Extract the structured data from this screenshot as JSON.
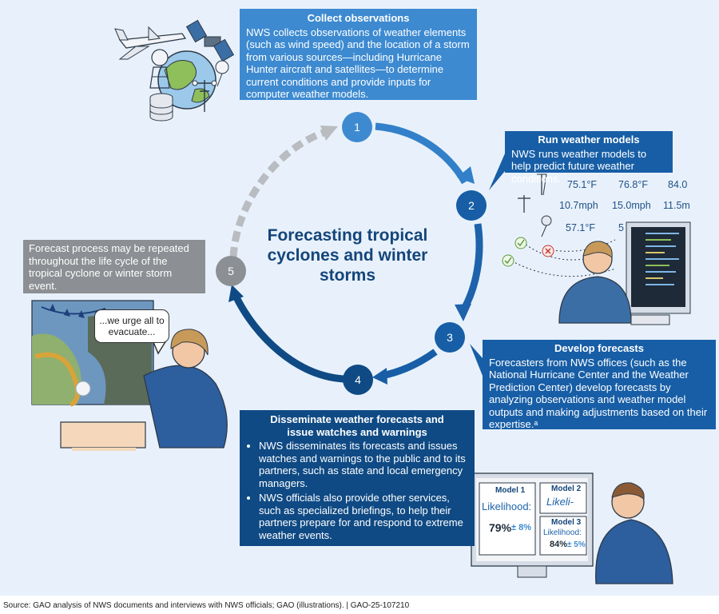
{
  "title": "Forecasting tropical cyclones and winter storms",
  "steps": [
    {
      "number": "1",
      "heading": "Collect observations",
      "text": "NWS collects observations of weather elements (such as wind speed) and the location of a storm from various sources—including Hurricane Hunter aircraft and satellites—to determine current conditions and provide inputs for computer weather models."
    },
    {
      "number": "2",
      "heading": "Run weather models",
      "text": "NWS runs weather models to help predict future weather conditions."
    },
    {
      "number": "3",
      "heading": "Develop forecasts",
      "text": "Forecasters from NWS offices (such as the National Hurricane Center and the Weather Prediction Center) develop forecasts by analyzing observations and weather model outputs and making adjustments based on their expertise.ᵃ"
    },
    {
      "number": "4",
      "heading": "Disseminate weather forecasts and issue watches and warnings",
      "bullets": [
        "NWS disseminates its forecasts and issues watches and warnings to the public and to its partners, such as state and local emergency managers.",
        "NWS officials also provide other services, such as specialized briefings, to help their partners prepare for and respond to extreme weather events."
      ]
    },
    {
      "number": "5",
      "text": "Forecast process may be repeated throughout the life cycle of the tropical cyclone or winter storm event."
    }
  ],
  "speech_bubble": "...we urge all to evacuate...",
  "model_readouts": {
    "temps": [
      "75.1°F",
      "76.8°F",
      "84.0"
    ],
    "winds": [
      "10.7mph",
      "15.0mph",
      "11.5m"
    ],
    "temp_low": "57.1°F",
    "partial": "5"
  },
  "model_screens": {
    "model1": {
      "name": "Model 1",
      "label": "Likelihood:",
      "value": "79%",
      "pm": "± 8%"
    },
    "model2": {
      "name": "Model 2",
      "label": "Likeli-"
    },
    "model3": {
      "name": "Model 3",
      "label": "Likelihood:",
      "value": "84%",
      "pm": "± 5%"
    }
  },
  "source": "Source: GAO analysis of NWS documents and interviews with NWS officials; GAO (illustrations).  |  GAO-25-107210",
  "colors": {
    "light_blue": "#3d8ad1",
    "mid_blue": "#175ea6",
    "dark_blue": "#0f4a84",
    "gray": "#8c8f93",
    "background": "#e8f1fb"
  }
}
